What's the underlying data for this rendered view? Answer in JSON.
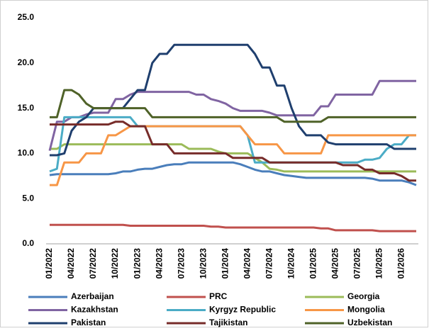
{
  "chart_data": {
    "type": "line",
    "categories": [
      "01/2022",
      null,
      null,
      "04/2022",
      null,
      null,
      "07/2022",
      null,
      null,
      "10/2022",
      null,
      null,
      "01/2023",
      null,
      null,
      "04/2023",
      null,
      null,
      "07/2023",
      null,
      null,
      "10/2023",
      null,
      null,
      "01/2024",
      null,
      null,
      "04/2024",
      null,
      null,
      "07/2024",
      null,
      null,
      "10/2024",
      null,
      null,
      "01/2025",
      null,
      null,
      "04/2025",
      null,
      null,
      "07/2025",
      null,
      null,
      "10/2025",
      null,
      null,
      "01/2026",
      null,
      null
    ],
    "series": [
      {
        "name": "Azerbaijan",
        "color": "#4a7ebb",
        "values": [
          7.6,
          7.7,
          7.7,
          7.7,
          7.7,
          7.7,
          7.7,
          7.7,
          7.7,
          7.8,
          8.0,
          8.0,
          8.2,
          8.3,
          8.3,
          8.5,
          8.7,
          8.8,
          8.8,
          9.0,
          9.0,
          9.0,
          9.0,
          9.0,
          9.0,
          9.0,
          8.8,
          8.5,
          8.2,
          8.0,
          8.0,
          7.8,
          7.6,
          7.5,
          7.4,
          7.3,
          7.3,
          7.3,
          7.3,
          7.3,
          7.3,
          7.3,
          7.3,
          7.3,
          7.2,
          7.0,
          7.0,
          7.0,
          7.0,
          6.8,
          6.5
        ]
      },
      {
        "name": "PRC",
        "color": "#c0504d",
        "values": [
          2.1,
          2.1,
          2.1,
          2.1,
          2.1,
          2.1,
          2.1,
          2.1,
          2.1,
          2.1,
          2.1,
          2.0,
          2.0,
          2.0,
          2.0,
          2.0,
          2.0,
          2.0,
          2.0,
          2.0,
          2.0,
          2.0,
          1.9,
          1.9,
          1.8,
          1.8,
          1.8,
          1.8,
          1.8,
          1.8,
          1.8,
          1.8,
          1.8,
          1.8,
          1.8,
          1.8,
          1.8,
          1.7,
          1.7,
          1.5,
          1.5,
          1.5,
          1.5,
          1.5,
          1.5,
          1.4,
          1.4,
          1.4,
          1.4,
          1.4,
          1.4
        ]
      },
      {
        "name": "Georgia",
        "color": "#9bbb59",
        "values": [
          10.5,
          10.5,
          11,
          11,
          11,
          11,
          11,
          11,
          11,
          11,
          11,
          11,
          11,
          11,
          11,
          11,
          11,
          11,
          11,
          10.5,
          10.5,
          10.5,
          10.5,
          10.2,
          10,
          10,
          10,
          10,
          9.5,
          9.0,
          8.3,
          8.2,
          8.0,
          8.0,
          8.0,
          8.0,
          8.0,
          8.0,
          8.0,
          8.0,
          8.0,
          8.0,
          8.0,
          8.0,
          8.0,
          8.0,
          8.0,
          8.0,
          8.0,
          8.0,
          8.0
        ]
      },
      {
        "name": "Kazakhstan",
        "color": "#8064a2",
        "values": [
          10.3,
          13.5,
          13.5,
          14,
          14,
          14.3,
          14.5,
          14.5,
          14.5,
          16,
          16,
          16.5,
          16.8,
          16.8,
          16.8,
          16.8,
          16.8,
          16.8,
          16.8,
          16.8,
          16.5,
          16.5,
          16,
          15.8,
          15.5,
          15,
          14.7,
          14.7,
          14.7,
          14.7,
          14.5,
          14.2,
          14.2,
          14.2,
          14.2,
          14.2,
          14.2,
          15.2,
          15.2,
          16.5,
          16.5,
          16.5,
          16.5,
          16.5,
          16.5,
          18,
          18,
          18,
          18,
          18,
          18
        ]
      },
      {
        "name": "Kyrgyz Republic",
        "color": "#4bacc6",
        "values": [
          8.0,
          8.3,
          14,
          14,
          14,
          14,
          14,
          14,
          14,
          14,
          14,
          14,
          13,
          13,
          13,
          13,
          13,
          13,
          13,
          13,
          13,
          13,
          13,
          13,
          13,
          13,
          13,
          12,
          9.0,
          9.0,
          9.0,
          9.0,
          9.0,
          9.0,
          9.0,
          9.0,
          9.0,
          9.0,
          9.0,
          9.0,
          9.0,
          9.0,
          9.0,
          9.3,
          9.3,
          9.5,
          10.5,
          11,
          11,
          12,
          12
        ]
      },
      {
        "name": "Mongolia",
        "color": "#f79646",
        "values": [
          6.5,
          6.5,
          9,
          9,
          9,
          10,
          10,
          10,
          12,
          12,
          12.5,
          13,
          13,
          13,
          13,
          13,
          13,
          13,
          13,
          13,
          13,
          13,
          13,
          13,
          13,
          13,
          13,
          12,
          11,
          11,
          11,
          11,
          10,
          10,
          10,
          10,
          10,
          10,
          12,
          12,
          12,
          12,
          12,
          12,
          12,
          12,
          12,
          12,
          12,
          12,
          12
        ]
      },
      {
        "name": "Pakistan",
        "color": "#1f3f6e",
        "values": [
          9.8,
          9.8,
          10,
          12.5,
          13.5,
          14,
          15,
          15,
          15,
          15,
          15,
          16,
          17,
          17,
          20,
          21,
          21,
          22,
          22,
          22,
          22,
          22,
          22,
          22,
          22,
          22,
          22,
          22,
          21,
          19.5,
          19.5,
          17.5,
          17.5,
          15,
          13,
          12,
          12,
          12,
          11.2,
          11,
          11,
          11,
          11,
          11,
          11,
          11,
          11,
          10.5,
          10.5,
          10.5,
          10.5
        ]
      },
      {
        "name": "Tajikistan",
        "color": "#772c2a",
        "values": [
          13.2,
          13.2,
          13.2,
          13.2,
          13.2,
          13.2,
          13.2,
          13.2,
          13.2,
          13.5,
          13.5,
          13,
          13,
          13,
          11,
          11,
          11,
          10,
          10,
          10,
          10,
          10,
          10,
          10,
          10,
          9.5,
          9.5,
          9.5,
          9.5,
          9.5,
          9,
          9,
          9,
          9,
          9,
          9,
          9,
          9,
          9,
          9,
          8.7,
          8.7,
          8.7,
          8.2,
          8.2,
          7.8,
          7.8,
          7.8,
          7.5,
          7.0,
          7.0
        ]
      },
      {
        "name": "Uzbekistan",
        "color": "#4f6228",
        "values": [
          14,
          14,
          17,
          17,
          16.5,
          15.5,
          15,
          15,
          15,
          15,
          15,
          15,
          15,
          15,
          14,
          14,
          14,
          14,
          14,
          14,
          14,
          14,
          14,
          14,
          14,
          14,
          14,
          14,
          14,
          14,
          14,
          14,
          13.5,
          13.5,
          13.5,
          13.5,
          13.5,
          13.5,
          14,
          14,
          14,
          14,
          14,
          14,
          14,
          14,
          14,
          14,
          14,
          14,
          14
        ]
      }
    ],
    "ylim": [
      0,
      25
    ],
    "yticks": [
      {
        "value": 0,
        "label": "0.0"
      },
      {
        "value": 5,
        "label": "5.0"
      },
      {
        "value": 10,
        "label": "10.0"
      },
      {
        "value": 15,
        "label": "15.0"
      },
      {
        "value": 20,
        "label": "20.0"
      },
      {
        "value": 25,
        "label": "25.0"
      }
    ],
    "grid": false
  }
}
